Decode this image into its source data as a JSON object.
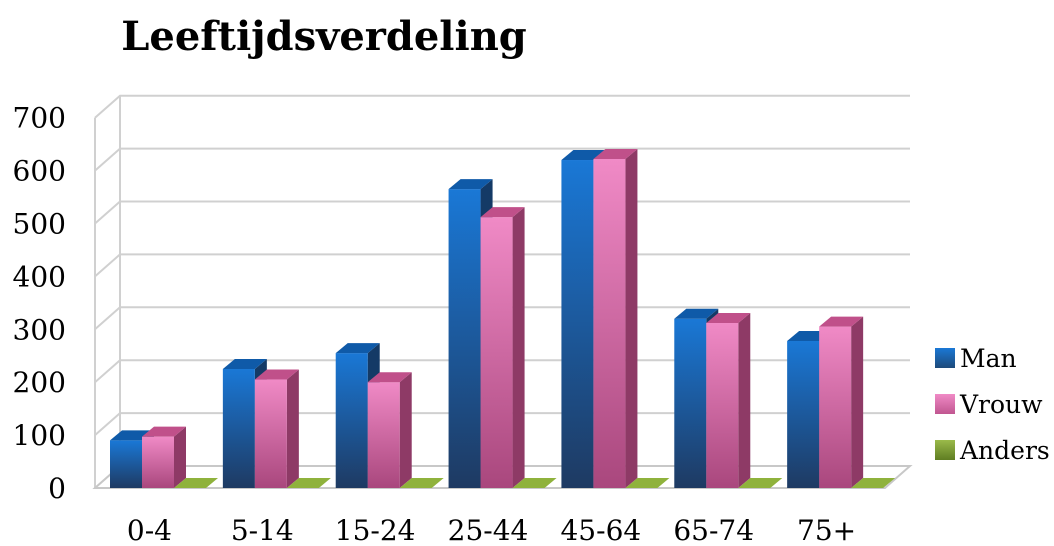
{
  "chart_data": {
    "type": "bar",
    "title": "Leeftijdsverdeling",
    "categories": [
      "0-4",
      "5-14",
      "15-24",
      "25-44",
      "45-64",
      "65-74",
      "75+"
    ],
    "series": [
      {
        "name": "Man",
        "color": "#1f6fbf",
        "values": [
          90,
          225,
          255,
          565,
          620,
          320,
          278
        ]
      },
      {
        "name": "Vrouw",
        "color": "#e060a8",
        "values": [
          97,
          205,
          200,
          512,
          622,
          312,
          305
        ]
      },
      {
        "name": "Anders",
        "color": "#7a9a2e",
        "values": [
          0,
          0,
          0,
          0,
          0,
          0,
          0
        ]
      }
    ],
    "yticks": [
      "0",
      "100",
      "200",
      "300",
      "400",
      "500",
      "600",
      "700"
    ],
    "ylim": [
      0,
      700
    ],
    "grid": true,
    "legend": "right",
    "style": "3d-clustered-column"
  }
}
